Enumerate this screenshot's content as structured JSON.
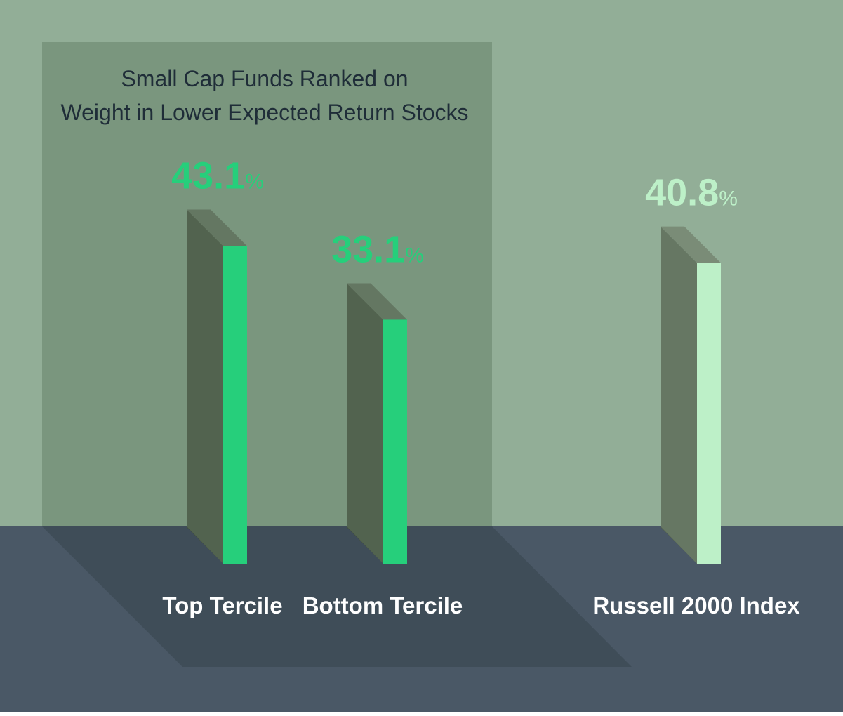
{
  "chart_data": {
    "type": "bar",
    "title": [
      "Small Cap Funds Ranked on",
      "Weight in Lower Expected Return Stocks"
    ],
    "categories": [
      "Top Tercile",
      "Bottom Tercile",
      "Russell 2000 Index"
    ],
    "values": [
      43.1,
      33.1,
      40.8
    ],
    "unit": "%",
    "colors": [
      "#26cf7b",
      "#26cf7b",
      "#bdf0c8"
    ]
  }
}
